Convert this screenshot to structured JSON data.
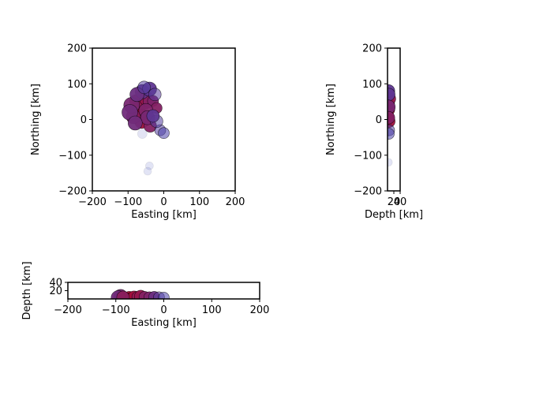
{
  "chart_data": [
    {
      "type": "scatter",
      "panel": "map-view",
      "xlabel": "Easting [km]",
      "ylabel": "Northing [km]",
      "xlim": [
        -200,
        200
      ],
      "ylim": [
        -200,
        200
      ],
      "xticks": [
        "−200",
        "−100",
        "0",
        "100",
        "200"
      ],
      "yticks": [
        "−200",
        "−100",
        "0",
        "100",
        "200"
      ],
      "grid": false,
      "color_scale": [
        "#3b4cc0",
        "#b40426"
      ],
      "points": [
        {
          "x": -78,
          "y": 52,
          "v": 0.9,
          "r": 8
        },
        {
          "x": -72,
          "y": 28,
          "v": 0.95,
          "r": 9
        },
        {
          "x": -68,
          "y": 10,
          "v": 1.0,
          "r": 8
        },
        {
          "x": -62,
          "y": -5,
          "v": 0.85,
          "r": 9
        },
        {
          "x": -55,
          "y": 45,
          "v": 0.7,
          "r": 8
        },
        {
          "x": -48,
          "y": 58,
          "v": 0.75,
          "r": 9
        },
        {
          "x": -40,
          "y": 50,
          "v": 0.6,
          "r": 8
        },
        {
          "x": -30,
          "y": 52,
          "v": 0.55,
          "r": 7
        },
        {
          "x": -20,
          "y": 32,
          "v": 0.6,
          "r": 7
        },
        {
          "x": -38,
          "y": -18,
          "v": 0.6,
          "r": 8
        },
        {
          "x": -85,
          "y": 8,
          "v": 0.65,
          "r": 9
        },
        {
          "x": -90,
          "y": 40,
          "v": 0.5,
          "r": 10
        },
        {
          "x": -60,
          "y": 78,
          "v": 0.35,
          "r": 9
        },
        {
          "x": -40,
          "y": 85,
          "v": 0.3,
          "r": 9
        },
        {
          "x": -25,
          "y": 70,
          "v": 0.25,
          "r": 8
        },
        {
          "x": -75,
          "y": 70,
          "v": 0.4,
          "r": 9
        },
        {
          "x": -95,
          "y": 20,
          "v": 0.45,
          "r": 10
        },
        {
          "x": -50,
          "y": 25,
          "v": 0.55,
          "r": 9
        },
        {
          "x": -45,
          "y": 5,
          "v": 0.5,
          "r": 9
        },
        {
          "x": -10,
          "y": -30,
          "v": 0.2,
          "r": 7
        },
        {
          "x": 0,
          "y": -38,
          "v": 0.15,
          "r": 7
        },
        {
          "x": -20,
          "y": -5,
          "v": 0.2,
          "r": 8
        },
        {
          "x": -30,
          "y": 10,
          "v": 0.3,
          "r": 8
        },
        {
          "x": -55,
          "y": 90,
          "v": 0.2,
          "r": 8
        },
        {
          "x": -80,
          "y": -10,
          "v": 0.45,
          "r": 9
        },
        {
          "x": -60,
          "y": -40,
          "v": 0.05,
          "r": 6
        },
        {
          "x": -40,
          "y": -130,
          "v": 0.02,
          "r": 5
        },
        {
          "x": -45,
          "y": -145,
          "v": 0.02,
          "r": 5
        }
      ]
    },
    {
      "type": "scatter",
      "panel": "depth-northing",
      "xlabel": "Depth [km]",
      "ylabel": "Northing [km]",
      "xlim": [
        0,
        40
      ],
      "ylim": [
        -200,
        200
      ],
      "xticks": [
        "20",
        "40"
      ],
      "yticks": [
        "−200",
        "−100",
        "0",
        "100",
        "200"
      ],
      "grid": false,
      "points": [
        {
          "x": 2,
          "y": 52,
          "v": 0.9,
          "r": 7
        },
        {
          "x": 3,
          "y": 28,
          "v": 0.95,
          "r": 8
        },
        {
          "x": 2,
          "y": 10,
          "v": 1.0,
          "r": 7
        },
        {
          "x": 4,
          "y": -5,
          "v": 0.85,
          "r": 8
        },
        {
          "x": 5,
          "y": 45,
          "v": 0.7,
          "r": 7
        },
        {
          "x": 6,
          "y": 58,
          "v": 0.75,
          "r": 8
        },
        {
          "x": 3,
          "y": 80,
          "v": 0.3,
          "r": 8
        },
        {
          "x": 4,
          "y": 70,
          "v": 0.3,
          "r": 8
        },
        {
          "x": 5,
          "y": -30,
          "v": 0.2,
          "r": 7
        },
        {
          "x": 4,
          "y": -40,
          "v": 0.15,
          "r": 7
        },
        {
          "x": 2,
          "y": 35,
          "v": 0.5,
          "r": 9
        },
        {
          "x": 3,
          "y": 5,
          "v": 0.6,
          "r": 8
        },
        {
          "x": 3,
          "y": -120,
          "v": 0.02,
          "r": 5
        }
      ]
    },
    {
      "type": "scatter",
      "panel": "easting-depth",
      "xlabel": "Easting [km]",
      "ylabel": "Depth [km]",
      "xlim": [
        -200,
        200
      ],
      "ylim": [
        0,
        40
      ],
      "xticks": [
        "−200",
        "−100",
        "0",
        "100",
        "200"
      ],
      "yticks": [
        "20",
        "40"
      ],
      "grid": false,
      "points": [
        {
          "x": -78,
          "y": 2,
          "v": 0.9,
          "r": 7
        },
        {
          "x": -72,
          "y": 3,
          "v": 0.95,
          "r": 8
        },
        {
          "x": -68,
          "y": 2,
          "v": 1.0,
          "r": 7
        },
        {
          "x": -62,
          "y": 4,
          "v": 0.85,
          "r": 8
        },
        {
          "x": -55,
          "y": 5,
          "v": 0.7,
          "r": 7
        },
        {
          "x": -48,
          "y": 6,
          "v": 0.75,
          "r": 8
        },
        {
          "x": -40,
          "y": 5,
          "v": 0.6,
          "r": 7
        },
        {
          "x": -30,
          "y": 4,
          "v": 0.55,
          "r": 7
        },
        {
          "x": -20,
          "y": 5,
          "v": 0.4,
          "r": 7
        },
        {
          "x": -90,
          "y": 6,
          "v": 0.5,
          "r": 9
        },
        {
          "x": -95,
          "y": 3,
          "v": 0.45,
          "r": 9
        },
        {
          "x": -10,
          "y": 4,
          "v": 0.25,
          "r": 7
        },
        {
          "x": 0,
          "y": 3,
          "v": 0.15,
          "r": 7
        },
        {
          "x": -85,
          "y": 4,
          "v": 0.65,
          "r": 8
        }
      ]
    }
  ]
}
